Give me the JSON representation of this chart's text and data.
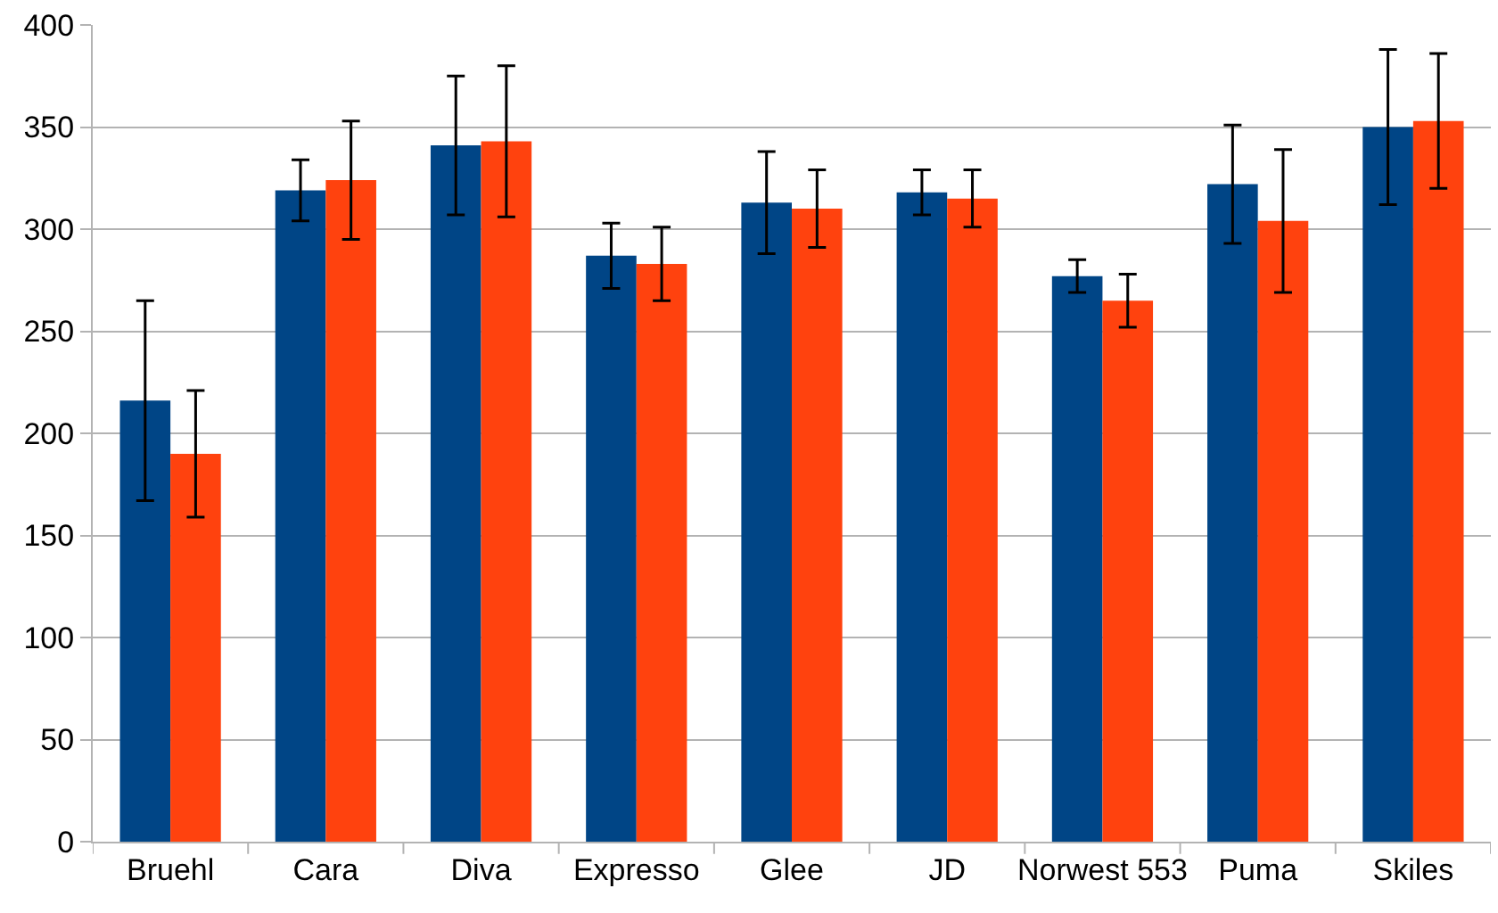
{
  "chart_data": {
    "type": "bar",
    "categories": [
      "Bruehl",
      "Cara",
      "Diva",
      "Expresso",
      "Glee",
      "JD",
      "Norwest 553",
      "Puma",
      "Skiles"
    ],
    "series": [
      {
        "color": "#004586",
        "values": [
          216,
          319,
          341,
          287,
          313,
          318,
          277,
          322,
          350
        ],
        "errors": [
          49,
          15,
          34,
          16,
          25,
          11,
          8,
          29,
          38
        ]
      },
      {
        "color": "#ff420e",
        "values": [
          190,
          324,
          343,
          283,
          310,
          315,
          265,
          304,
          353
        ],
        "errors": [
          31,
          29,
          37,
          18,
          19,
          14,
          13,
          35,
          33
        ]
      }
    ],
    "ylim": [
      0,
      400
    ],
    "yticks": [
      0,
      50,
      100,
      150,
      200,
      250,
      300,
      350,
      400
    ],
    "grid": "y"
  }
}
